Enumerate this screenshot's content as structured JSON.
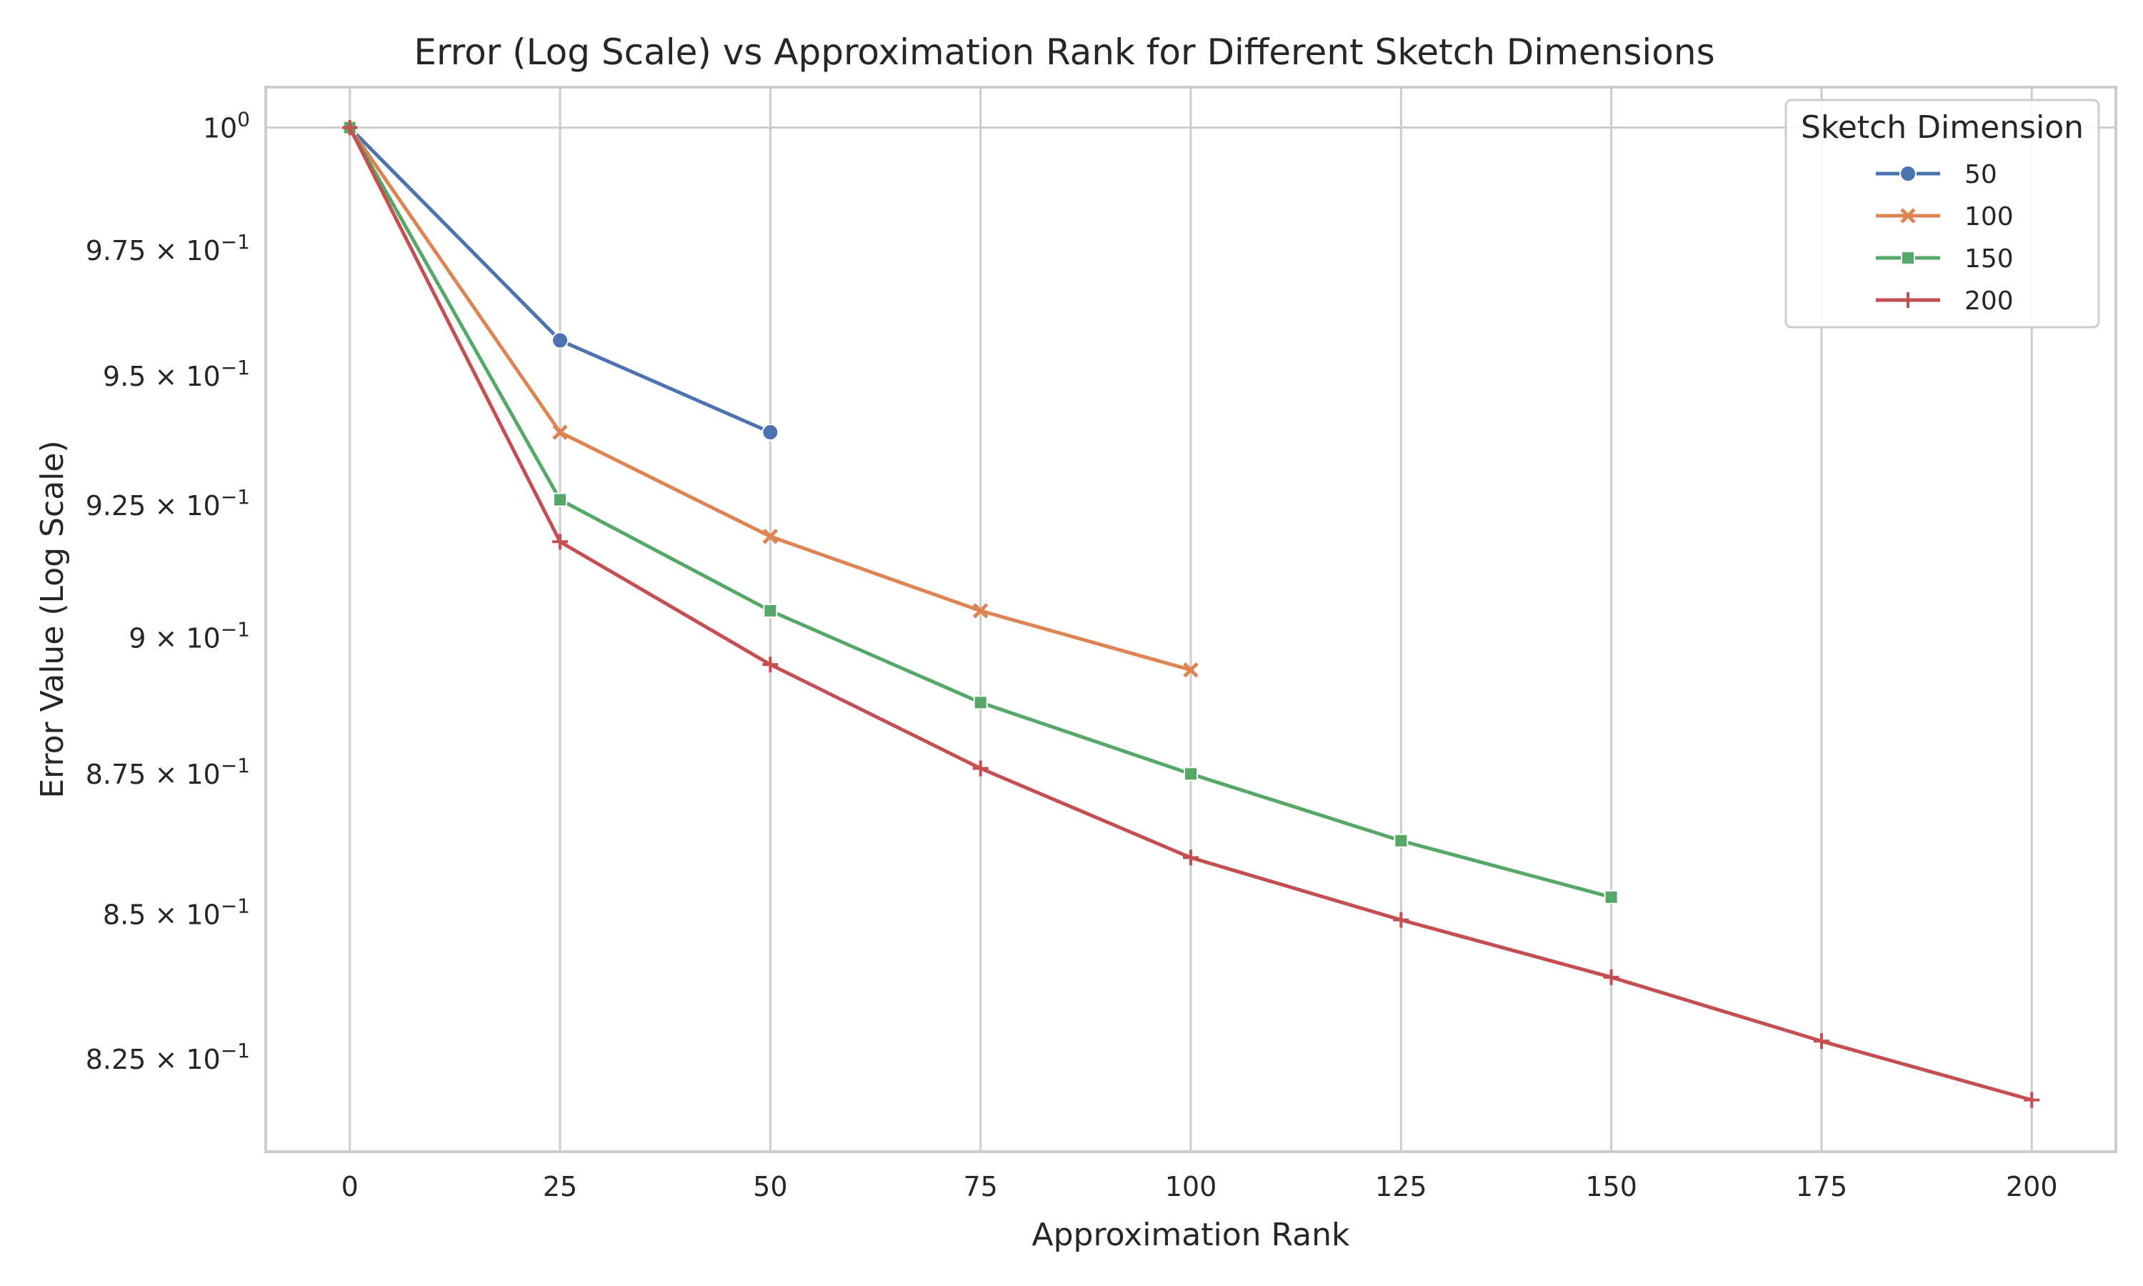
{
  "chart_data": {
    "type": "line",
    "title": "Error (Log Scale) vs Approximation Rank for Different Sketch Dimensions",
    "xlabel": "Approximation Rank",
    "ylabel": "Error Value (Log Scale)",
    "xscale": "linear",
    "yscale": "log",
    "xlim": [
      -10,
      210
    ],
    "ylim": [
      0.8093,
      1.0084
    ],
    "grid": true,
    "x_ticks": [
      {
        "value": 0,
        "label": "0"
      },
      {
        "value": 25,
        "label": "25"
      },
      {
        "value": 50,
        "label": "50"
      },
      {
        "value": 75,
        "label": "75"
      },
      {
        "value": 100,
        "label": "100"
      },
      {
        "value": 125,
        "label": "125"
      },
      {
        "value": 150,
        "label": "150"
      },
      {
        "value": 175,
        "label": "175"
      },
      {
        "value": 200,
        "label": "200"
      }
    ],
    "y_ticks": [
      {
        "value": 1.0,
        "mantissa": "10",
        "exponent": "0"
      },
      {
        "value": 0.975,
        "mantissa": "9.75 × 10",
        "exponent": "−1"
      },
      {
        "value": 0.95,
        "mantissa": "9.5 × 10",
        "exponent": "−1"
      },
      {
        "value": 0.925,
        "mantissa": "9.25 × 10",
        "exponent": "−1"
      },
      {
        "value": 0.9,
        "mantissa": "9 × 10",
        "exponent": "−1"
      },
      {
        "value": 0.875,
        "mantissa": "8.75 × 10",
        "exponent": "−1"
      },
      {
        "value": 0.85,
        "mantissa": "8.5 × 10",
        "exponent": "−1"
      },
      {
        "value": 0.825,
        "mantissa": "8.25 × 10",
        "exponent": "−1"
      }
    ],
    "legend": {
      "title": "Sketch Dimension",
      "position": "top-right"
    },
    "series": [
      {
        "name": "50",
        "color": "#4c72b0",
        "marker": "circle",
        "x": [
          0,
          25,
          50
        ],
        "y": [
          1.0,
          0.957,
          0.939
        ]
      },
      {
        "name": "100",
        "color": "#dd8452",
        "marker": "x",
        "x": [
          0,
          25,
          50,
          75,
          100
        ],
        "y": [
          1.0,
          0.939,
          0.919,
          0.905,
          0.894
        ]
      },
      {
        "name": "150",
        "color": "#55a868",
        "marker": "square",
        "x": [
          0,
          25,
          50,
          75,
          100,
          125,
          150
        ],
        "y": [
          1.0,
          0.926,
          0.905,
          0.888,
          0.875,
          0.863,
          0.853
        ]
      },
      {
        "name": "200",
        "color": "#c44e52",
        "marker": "plus",
        "x": [
          0,
          25,
          50,
          75,
          100,
          125,
          150,
          175,
          200
        ],
        "y": [
          1.0,
          0.918,
          0.895,
          0.876,
          0.86,
          0.849,
          0.839,
          0.828,
          0.818
        ]
      }
    ]
  }
}
